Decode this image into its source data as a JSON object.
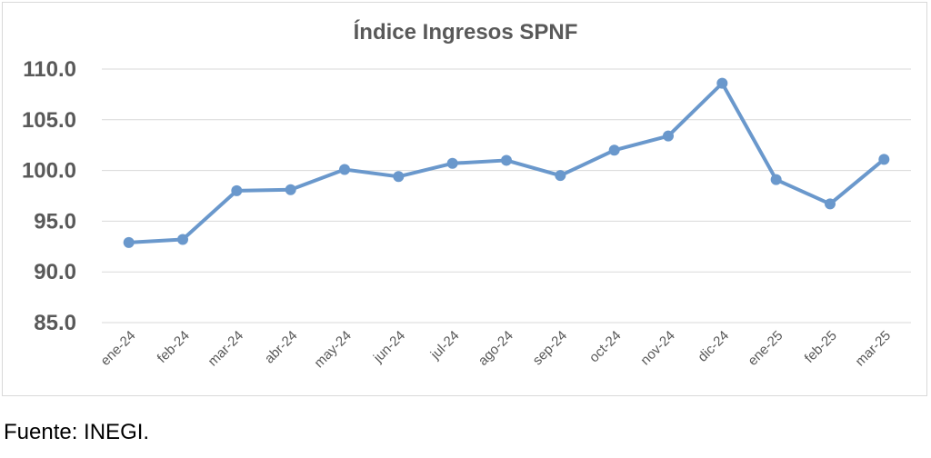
{
  "chart_data": {
    "type": "line",
    "title": "Índice Ingresos SPNF",
    "xlabel": "",
    "ylabel": "",
    "categories": [
      "ene-24",
      "feb-24",
      "mar-24",
      "abr-24",
      "may-24",
      "jun-24",
      "jul-24",
      "ago-24",
      "sep-24",
      "oct-24",
      "nov-24",
      "dic-24",
      "ene-25",
      "feb-25",
      "mar-25"
    ],
    "series": [
      {
        "values": [
          92.9,
          93.2,
          98.0,
          98.1,
          100.1,
          99.4,
          100.7,
          101.0,
          99.5,
          102.0,
          103.4,
          108.6,
          99.1,
          96.7,
          101.1
        ]
      }
    ],
    "ylim": [
      85,
      110
    ],
    "yticks": [
      "85.0",
      "90.0",
      "95.0",
      "100.0",
      "105.0",
      "110.0"
    ],
    "grid": true,
    "legend": "none",
    "line_color": "#6a98cc",
    "grid_color": "#d9d9d9"
  },
  "source": "Fuente: INEGI."
}
